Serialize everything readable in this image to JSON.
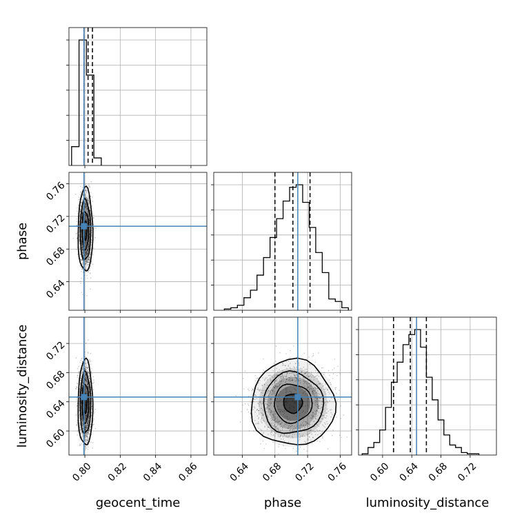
{
  "chart_data": {
    "type": "corner",
    "parameters": [
      "geocent_time",
      "phase",
      "luminosity_distance"
    ],
    "truth": {
      "geocent_time": 0.7995,
      "phase": 0.708,
      "luminosity_distance": 0.6465
    },
    "axes_ranges": {
      "geocent_time": [
        0.791,
        0.869
      ],
      "phase": [
        0.605,
        0.774
      ],
      "luminosity_distance": [
        0.567,
        0.756
      ]
    },
    "ticks": {
      "geocent_time": [
        0.8,
        0.82,
        0.84,
        0.86
      ],
      "phase": [
        0.64,
        0.68,
        0.72,
        0.76
      ],
      "luminosity_distance": [
        0.6,
        0.64,
        0.68,
        0.72
      ]
    },
    "tick_labels": {
      "geocent_time": [
        "0.80",
        "0.82",
        "0.84",
        "0.86"
      ],
      "phase": [
        "0.64",
        "0.68",
        "0.72",
        "0.76"
      ],
      "luminosity_distance": [
        "0.60",
        "0.64",
        "0.68",
        "0.72"
      ]
    },
    "axis_labels": {
      "geocent_time": "geocent_time",
      "phase": "phase",
      "luminosity_distance": "luminosity_distance"
    },
    "quantiles": {
      "geocent_time": [
        0.7995,
        0.8018,
        0.8043
      ],
      "phase": [
        0.68,
        0.702,
        0.723
      ],
      "luminosity_distance": [
        0.615,
        0.638,
        0.66
      ]
    },
    "histograms": {
      "geocent_time": {
        "bin_edges": [
          0.7925,
          0.7967,
          0.8009,
          0.8051,
          0.8093
        ],
        "counts": [
          0.15,
          1.0,
          0.72,
          0.06
        ]
      },
      "phase": {
        "bin_edges": [
          0.618,
          0.626,
          0.634,
          0.642,
          0.65,
          0.658,
          0.666,
          0.674,
          0.682,
          0.69,
          0.698,
          0.706,
          0.714,
          0.722,
          0.73,
          0.738,
          0.746,
          0.754,
          0.762,
          0.77
        ],
        "counts": [
          0.01,
          0.02,
          0.04,
          0.1,
          0.16,
          0.28,
          0.42,
          0.58,
          0.73,
          0.87,
          0.98,
          1.0,
          0.86,
          0.66,
          0.46,
          0.3,
          0.09,
          0.07,
          0.02
        ]
      },
      "luminosity_distance": {
        "bin_edges": [
          0.572,
          0.58,
          0.588,
          0.596,
          0.604,
          0.612,
          0.62,
          0.628,
          0.636,
          0.644,
          0.652,
          0.66,
          0.668,
          0.676,
          0.684,
          0.692,
          0.7,
          0.708,
          0.716,
          0.724,
          0.732
        ],
        "counts": [
          0.01,
          0.06,
          0.1,
          0.2,
          0.38,
          0.58,
          0.74,
          0.88,
          0.96,
          1.0,
          0.86,
          0.62,
          0.44,
          0.28,
          0.16,
          0.08,
          0.06,
          0.02,
          0.01,
          0.01
        ]
      }
    },
    "posterior_2d": {
      "geocent_time-phase": {
        "center": [
          0.8003,
          0.703
        ],
        "sd": [
          0.0017,
          0.021
        ]
      },
      "geocent_time-luminosity_distance": {
        "center": [
          0.8003,
          0.638
        ],
        "sd": [
          0.0017,
          0.024
        ]
      },
      "phase-luminosity_distance": {
        "center": [
          0.702,
          0.638
        ],
        "sd": [
          0.021,
          0.024
        ]
      }
    },
    "grid": true,
    "colors": {
      "truth": "#4682b4",
      "contour": "#000000",
      "grid": "#b0b0b0",
      "density": "#000000"
    }
  }
}
